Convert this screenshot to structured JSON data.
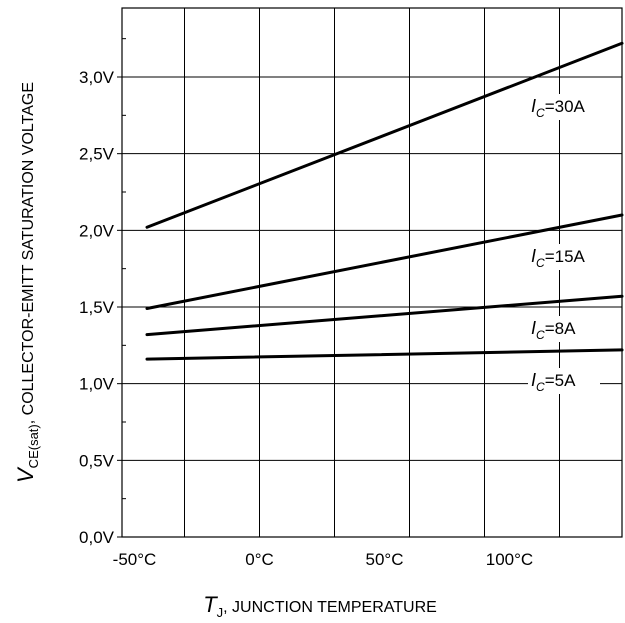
{
  "chart_data": {
    "type": "line",
    "x_ticks": [
      "-50°C",
      "0°C",
      "50°C",
      "100°C"
    ],
    "y_ticks": [
      "0,0V",
      "0,5V",
      "1,0V",
      "1,5V",
      "2,0V",
      "2,5V",
      "3,0V"
    ],
    "xlim": [
      -55,
      145
    ],
    "ylim": [
      0,
      3.45
    ],
    "x_ticks_values": [
      -50,
      0,
      50,
      100
    ],
    "y_ticks_values": [
      0,
      0.5,
      1.0,
      1.5,
      2.0,
      2.5,
      3.0
    ],
    "grid_x": [
      -30,
      0,
      30,
      60,
      90,
      120
    ],
    "grid_y": [
      0.5,
      1.0,
      1.5,
      2.0,
      2.5,
      3.0
    ],
    "xlabel": {
      "var": "T",
      "sub": "J",
      "rest": ", JUNCTION TEMPERATURE"
    },
    "ylabel": {
      "var": "V",
      "sub": "CE(sat)",
      "rest": ", COLLECTOR-EMITT SATURATION VOLTAGE"
    },
    "series": [
      {
        "name": "IC=30A",
        "label_var": "I",
        "label_sub": "C",
        "label_val": "=30A",
        "x": [
          -45,
          145
        ],
        "y": [
          2.02,
          3.22
        ]
      },
      {
        "name": "IC=15A",
        "label_var": "I",
        "label_sub": "C",
        "label_val": "=15A",
        "x": [
          -45,
          145
        ],
        "y": [
          1.49,
          2.1
        ]
      },
      {
        "name": "IC=8A",
        "label_var": "I",
        "label_sub": "C",
        "label_val": "=8A",
        "x": [
          -45,
          145
        ],
        "y": [
          1.32,
          1.57
        ]
      },
      {
        "name": "IC=5A",
        "label_var": "I",
        "label_sub": "C",
        "label_val": "=5A",
        "x": [
          -45,
          145
        ],
        "y": [
          1.16,
          1.22
        ]
      }
    ],
    "grid": true
  }
}
